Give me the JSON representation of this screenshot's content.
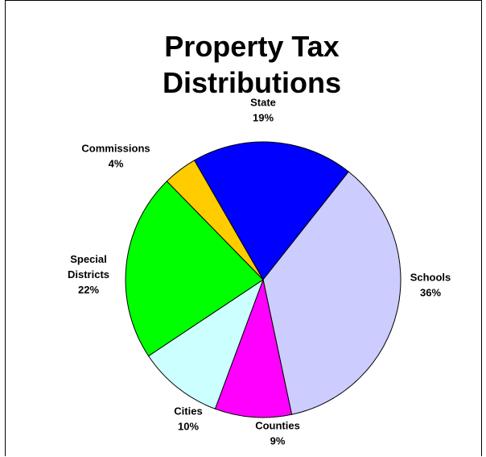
{
  "chart_data": {
    "type": "pie",
    "title_lines": [
      "Property Tax",
      "Distributions"
    ],
    "slices": [
      {
        "label": "State",
        "value": 19,
        "percent_label": "19%",
        "color": "#0000ff"
      },
      {
        "label": "Schools",
        "value": 36,
        "percent_label": "36%",
        "color": "#ccccff"
      },
      {
        "label": "Counties",
        "value": 9,
        "percent_label": "9%",
        "color": "#ff00ff"
      },
      {
        "label": "Cities",
        "value": 10,
        "percent_label": "10%",
        "color": "#ccffff"
      },
      {
        "label": "Special Districts",
        "label_lines": [
          "Special",
          "Districts"
        ],
        "value": 22,
        "percent_label": "22%",
        "color": "#00ff00"
      },
      {
        "label": "Commissions",
        "value": 4,
        "percent_label": "4%",
        "color": "#ffcc00"
      }
    ]
  }
}
